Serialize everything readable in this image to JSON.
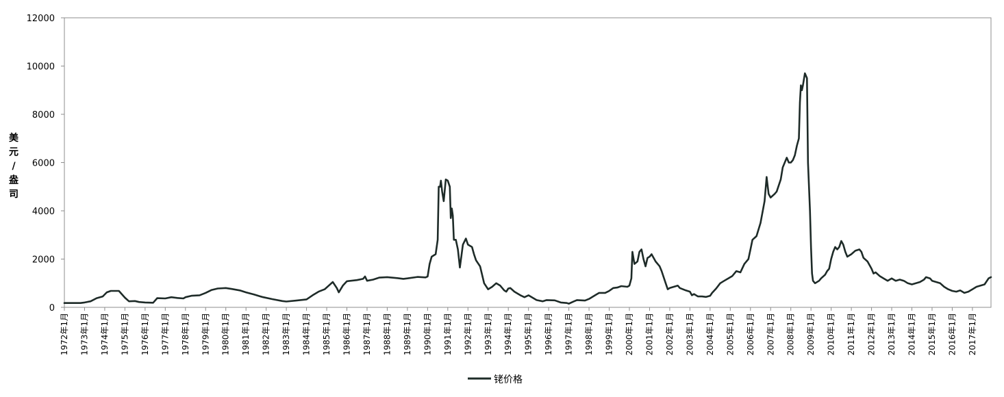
{
  "chart_data": {
    "type": "line",
    "title": "",
    "xlabel": "",
    "ylabel": "美元/盎司",
    "ylabel_chars": [
      "美",
      "元",
      "/",
      "盎",
      "司"
    ],
    "ylim": [
      0,
      12000
    ],
    "yticks": [
      0,
      2000,
      4000,
      6000,
      8000,
      10000,
      12000
    ],
    "xlim": [
      1972.0,
      2017.92
    ],
    "grid": false,
    "legend_position": "bottom-center",
    "colors": {
      "series": "#1e2b28",
      "axis": "#8c8c8c"
    },
    "xtick_labels": [
      "1972年1月",
      "1973年1月",
      "1974年1月",
      "1975年1月",
      "1976年1月",
      "1977年1月",
      "1978年1月",
      "1979年1月",
      "1980年1月",
      "1981年1月",
      "1982年1月",
      "1983年1月",
      "1984年1月",
      "1985年1月",
      "1986年1月",
      "1987年1月",
      "1988年1月",
      "1989年1月",
      "1990年1月",
      "1991年1月",
      "1992年1月",
      "1993年1月",
      "1994年1月",
      "1995年1月",
      "1996年1月",
      "1997年1月",
      "1998年1月",
      "1999年1月",
      "2000年1月",
      "2001年1月",
      "2002年1月",
      "2003年1月",
      "2004年1月",
      "2005年1月",
      "2006年1月",
      "2007年1月",
      "2008年1月",
      "2009年1月",
      "2010年1月",
      "2011年1月",
      "2012年1月",
      "2013年1月",
      "2014年1月",
      "2015年1月",
      "2016年1月",
      "2017年1月"
    ],
    "series": [
      {
        "name": "铑价格",
        "points": [
          [
            1972.0,
            180
          ],
          [
            1972.8,
            180
          ],
          [
            1973.0,
            200
          ],
          [
            1973.3,
            250
          ],
          [
            1973.6,
            380
          ],
          [
            1973.9,
            450
          ],
          [
            1974.1,
            620
          ],
          [
            1974.3,
            680
          ],
          [
            1974.7,
            680
          ],
          [
            1975.0,
            400
          ],
          [
            1975.2,
            250
          ],
          [
            1975.5,
            260
          ],
          [
            1975.7,
            220
          ],
          [
            1976.0,
            200
          ],
          [
            1976.4,
            190
          ],
          [
            1976.6,
            380
          ],
          [
            1977.0,
            370
          ],
          [
            1977.3,
            420
          ],
          [
            1977.6,
            390
          ],
          [
            1977.9,
            370
          ],
          [
            1978.0,
            420
          ],
          [
            1978.3,
            480
          ],
          [
            1978.7,
            500
          ],
          [
            1979.0,
            600
          ],
          [
            1979.3,
            720
          ],
          [
            1979.6,
            780
          ],
          [
            1980.0,
            800
          ],
          [
            1980.3,
            760
          ],
          [
            1980.7,
            700
          ],
          [
            1981.0,
            620
          ],
          [
            1981.4,
            530
          ],
          [
            1981.8,
            430
          ],
          [
            1982.3,
            340
          ],
          [
            1982.8,
            260
          ],
          [
            1983.0,
            240
          ],
          [
            1983.5,
            280
          ],
          [
            1984.0,
            330
          ],
          [
            1984.3,
            500
          ],
          [
            1984.6,
            650
          ],
          [
            1984.9,
            750
          ],
          [
            1985.1,
            900
          ],
          [
            1985.3,
            1050
          ],
          [
            1985.5,
            800
          ],
          [
            1985.6,
            620
          ],
          [
            1985.8,
            900
          ],
          [
            1986.0,
            1080
          ],
          [
            1986.5,
            1130
          ],
          [
            1986.8,
            1180
          ],
          [
            1986.9,
            1280
          ],
          [
            1987.0,
            1100
          ],
          [
            1987.3,
            1150
          ],
          [
            1987.6,
            1230
          ],
          [
            1988.0,
            1250
          ],
          [
            1988.5,
            1210
          ],
          [
            1988.8,
            1180
          ],
          [
            1989.0,
            1200
          ],
          [
            1989.5,
            1260
          ],
          [
            1989.9,
            1240
          ],
          [
            1990.0,
            1280
          ],
          [
            1990.1,
            1800
          ],
          [
            1990.2,
            2100
          ],
          [
            1990.4,
            2200
          ],
          [
            1990.5,
            2800
          ],
          [
            1990.55,
            5000
          ],
          [
            1990.62,
            5000
          ],
          [
            1990.66,
            5250
          ],
          [
            1990.72,
            4800
          ],
          [
            1990.8,
            4400
          ],
          [
            1990.9,
            5300
          ],
          [
            1991.0,
            5250
          ],
          [
            1991.1,
            5000
          ],
          [
            1991.15,
            3700
          ],
          [
            1991.2,
            4100
          ],
          [
            1991.25,
            3800
          ],
          [
            1991.3,
            2800
          ],
          [
            1991.4,
            2800
          ],
          [
            1991.5,
            2400
          ],
          [
            1991.6,
            1650
          ],
          [
            1991.75,
            2600
          ],
          [
            1991.9,
            2850
          ],
          [
            1992.0,
            2600
          ],
          [
            1992.2,
            2500
          ],
          [
            1992.3,
            2200
          ],
          [
            1992.4,
            1950
          ],
          [
            1992.6,
            1700
          ],
          [
            1992.8,
            1000
          ],
          [
            1993.0,
            750
          ],
          [
            1993.2,
            850
          ],
          [
            1993.4,
            1000
          ],
          [
            1993.6,
            900
          ],
          [
            1993.8,
            700
          ],
          [
            1993.9,
            650
          ],
          [
            1994.0,
            780
          ],
          [
            1994.1,
            800
          ],
          [
            1994.3,
            650
          ],
          [
            1994.6,
            500
          ],
          [
            1994.8,
            420
          ],
          [
            1995.0,
            500
          ],
          [
            1995.2,
            400
          ],
          [
            1995.4,
            300
          ],
          [
            1995.7,
            250
          ],
          [
            1995.9,
            300
          ],
          [
            1996.3,
            290
          ],
          [
            1996.6,
            200
          ],
          [
            1996.9,
            180
          ],
          [
            1997.0,
            150
          ],
          [
            1997.2,
            230
          ],
          [
            1997.4,
            300
          ],
          [
            1997.8,
            280
          ],
          [
            1998.0,
            350
          ],
          [
            1998.3,
            500
          ],
          [
            1998.5,
            600
          ],
          [
            1998.8,
            600
          ],
          [
            1999.0,
            680
          ],
          [
            1999.2,
            800
          ],
          [
            1999.4,
            820
          ],
          [
            1999.6,
            880
          ],
          [
            1999.9,
            850
          ],
          [
            2000.0,
            900
          ],
          [
            2000.1,
            1200
          ],
          [
            2000.15,
            2300
          ],
          [
            2000.25,
            1800
          ],
          [
            2000.4,
            1900
          ],
          [
            2000.5,
            2300
          ],
          [
            2000.6,
            2400
          ],
          [
            2000.7,
            2000
          ],
          [
            2000.8,
            1700
          ],
          [
            2000.9,
            2050
          ],
          [
            2001.0,
            2100
          ],
          [
            2001.1,
            2200
          ],
          [
            2001.3,
            1900
          ],
          [
            2001.5,
            1700
          ],
          [
            2001.6,
            1500
          ],
          [
            2001.8,
            1000
          ],
          [
            2001.9,
            750
          ],
          [
            2002.0,
            800
          ],
          [
            2002.2,
            850
          ],
          [
            2002.4,
            900
          ],
          [
            2002.5,
            800
          ],
          [
            2002.8,
            700
          ],
          [
            2003.0,
            650
          ],
          [
            2003.1,
            500
          ],
          [
            2003.2,
            550
          ],
          [
            2003.4,
            450
          ],
          [
            2003.6,
            450
          ],
          [
            2003.8,
            430
          ],
          [
            2004.0,
            480
          ],
          [
            2004.1,
            600
          ],
          [
            2004.3,
            780
          ],
          [
            2004.5,
            1000
          ],
          [
            2004.7,
            1100
          ],
          [
            2004.9,
            1200
          ],
          [
            2005.1,
            1300
          ],
          [
            2005.3,
            1500
          ],
          [
            2005.5,
            1450
          ],
          [
            2005.7,
            1800
          ],
          [
            2005.9,
            2000
          ],
          [
            2006.0,
            2400
          ],
          [
            2006.1,
            2800
          ],
          [
            2006.3,
            2950
          ],
          [
            2006.5,
            3500
          ],
          [
            2006.7,
            4400
          ],
          [
            2006.8,
            5400
          ],
          [
            2006.9,
            4700
          ],
          [
            2007.0,
            4550
          ],
          [
            2007.2,
            4700
          ],
          [
            2007.3,
            4800
          ],
          [
            2007.5,
            5300
          ],
          [
            2007.6,
            5800
          ],
          [
            2007.8,
            6200
          ],
          [
            2007.9,
            6000
          ],
          [
            2008.0,
            6000
          ],
          [
            2008.1,
            6100
          ],
          [
            2008.2,
            6300
          ],
          [
            2008.3,
            6700
          ],
          [
            2008.4,
            7000
          ],
          [
            2008.45,
            8500
          ],
          [
            2008.5,
            9200
          ],
          [
            2008.55,
            9000
          ],
          [
            2008.6,
            9200
          ],
          [
            2008.7,
            9700
          ],
          [
            2008.8,
            9500
          ],
          [
            2008.85,
            6000
          ],
          [
            2008.95,
            4000
          ],
          [
            2009.0,
            2500
          ],
          [
            2009.05,
            1400
          ],
          [
            2009.1,
            1100
          ],
          [
            2009.2,
            1000
          ],
          [
            2009.4,
            1100
          ],
          [
            2009.5,
            1200
          ],
          [
            2009.7,
            1350
          ],
          [
            2009.8,
            1500
          ],
          [
            2009.9,
            1600
          ],
          [
            2010.0,
            2000
          ],
          [
            2010.1,
            2300
          ],
          [
            2010.2,
            2500
          ],
          [
            2010.3,
            2400
          ],
          [
            2010.4,
            2500
          ],
          [
            2010.5,
            2750
          ],
          [
            2010.6,
            2600
          ],
          [
            2010.7,
            2300
          ],
          [
            2010.8,
            2100
          ],
          [
            2011.0,
            2200
          ],
          [
            2011.2,
            2350
          ],
          [
            2011.4,
            2400
          ],
          [
            2011.5,
            2300
          ],
          [
            2011.6,
            2050
          ],
          [
            2011.8,
            1900
          ],
          [
            2012.0,
            1600
          ],
          [
            2012.1,
            1400
          ],
          [
            2012.2,
            1450
          ],
          [
            2012.4,
            1300
          ],
          [
            2012.6,
            1200
          ],
          [
            2012.8,
            1100
          ],
          [
            2013.0,
            1200
          ],
          [
            2013.2,
            1100
          ],
          [
            2013.4,
            1150
          ],
          [
            2013.6,
            1100
          ],
          [
            2013.8,
            1000
          ],
          [
            2014.0,
            950
          ],
          [
            2014.2,
            1000
          ],
          [
            2014.4,
            1050
          ],
          [
            2014.6,
            1150
          ],
          [
            2014.7,
            1250
          ],
          [
            2014.9,
            1200
          ],
          [
            2015.0,
            1100
          ],
          [
            2015.2,
            1050
          ],
          [
            2015.4,
            1000
          ],
          [
            2015.6,
            850
          ],
          [
            2015.8,
            750
          ],
          [
            2016.0,
            680
          ],
          [
            2016.2,
            650
          ],
          [
            2016.4,
            700
          ],
          [
            2016.6,
            600
          ],
          [
            2016.8,
            650
          ],
          [
            2017.0,
            750
          ],
          [
            2017.2,
            850
          ],
          [
            2017.4,
            900
          ],
          [
            2017.6,
            950
          ],
          [
            2017.8,
            1200
          ],
          [
            2017.92,
            1250
          ]
        ]
      }
    ]
  }
}
